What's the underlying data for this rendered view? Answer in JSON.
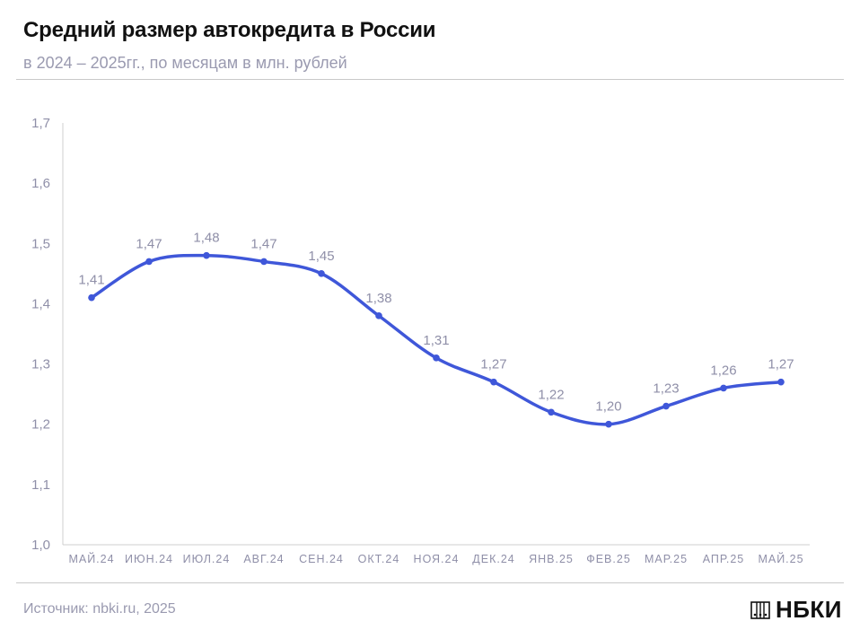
{
  "header": {
    "title": "Средний размер автокредита в России",
    "subtitle": "в 2024 – 2025гг., по месяцам в млн. рублей"
  },
  "footer": {
    "source": "Источник: nbki.ru, 2025",
    "logo_text": "НБКИ"
  },
  "colors": {
    "line": "#3f57d9",
    "axis_text": "#8f8fa8",
    "label_text": "#8f8fa8",
    "axis_line": "#cfcfcf"
  },
  "chart_data": {
    "type": "line",
    "categories": [
      "МАЙ.24",
      "ИЮН.24",
      "ИЮЛ.24",
      "АВГ.24",
      "СЕН.24",
      "ОКТ.24",
      "НОЯ.24",
      "ДЕК.24",
      "ЯНВ.25",
      "ФЕВ.25",
      "МАР.25",
      "АПР.25",
      "МАЙ.25"
    ],
    "values": [
      1.41,
      1.47,
      1.48,
      1.47,
      1.45,
      1.38,
      1.31,
      1.27,
      1.22,
      1.2,
      1.23,
      1.26,
      1.27
    ],
    "value_labels": [
      "1,41",
      "1,47",
      "1,48",
      "1,47",
      "1,45",
      "1,38",
      "1,31",
      "1,27",
      "1,22",
      "1,20",
      "1,23",
      "1,26",
      "1,27"
    ],
    "yticks": [
      "1,0",
      "1,1",
      "1,2",
      "1,3",
      "1,4",
      "1,5",
      "1,6",
      "1,7"
    ],
    "ylim": [
      1.0,
      1.7
    ],
    "grid": false,
    "smooth": true
  }
}
